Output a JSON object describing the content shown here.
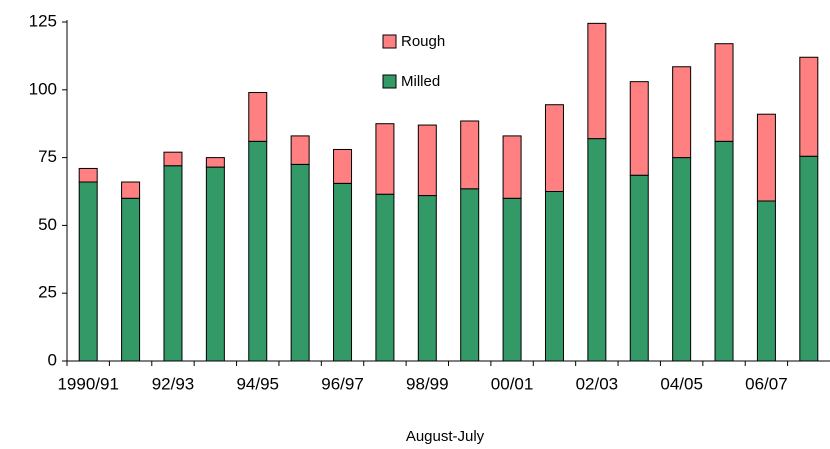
{
  "chart_data": {
    "type": "stacked_bar",
    "x_label": "August-July",
    "categories": [
      "1990/91",
      null,
      "92/93",
      null,
      "94/95",
      null,
      "96/97",
      null,
      "98/99",
      null,
      "00/01",
      null,
      "02/03",
      null,
      "04/05",
      null,
      "06/07",
      null
    ],
    "series": [
      {
        "name": "Milled",
        "color": "#339966",
        "values": [
          66,
          60,
          72,
          71.5,
          81,
          72.5,
          65.5,
          61.5,
          61,
          63.5,
          60,
          62.5,
          82,
          68.5,
          75,
          81,
          59,
          75.5
        ]
      },
      {
        "name": "Rough",
        "color": "#ff8080",
        "values": [
          5,
          6,
          5,
          3.5,
          18,
          10.5,
          12.5,
          26,
          26,
          25,
          23,
          32,
          42.5,
          34.5,
          33.5,
          36,
          32,
          36.5
        ]
      }
    ],
    "ylim": [
      0,
      125
    ],
    "yticks": [
      0,
      25,
      50,
      75,
      100,
      125
    ],
    "grid": false
  }
}
